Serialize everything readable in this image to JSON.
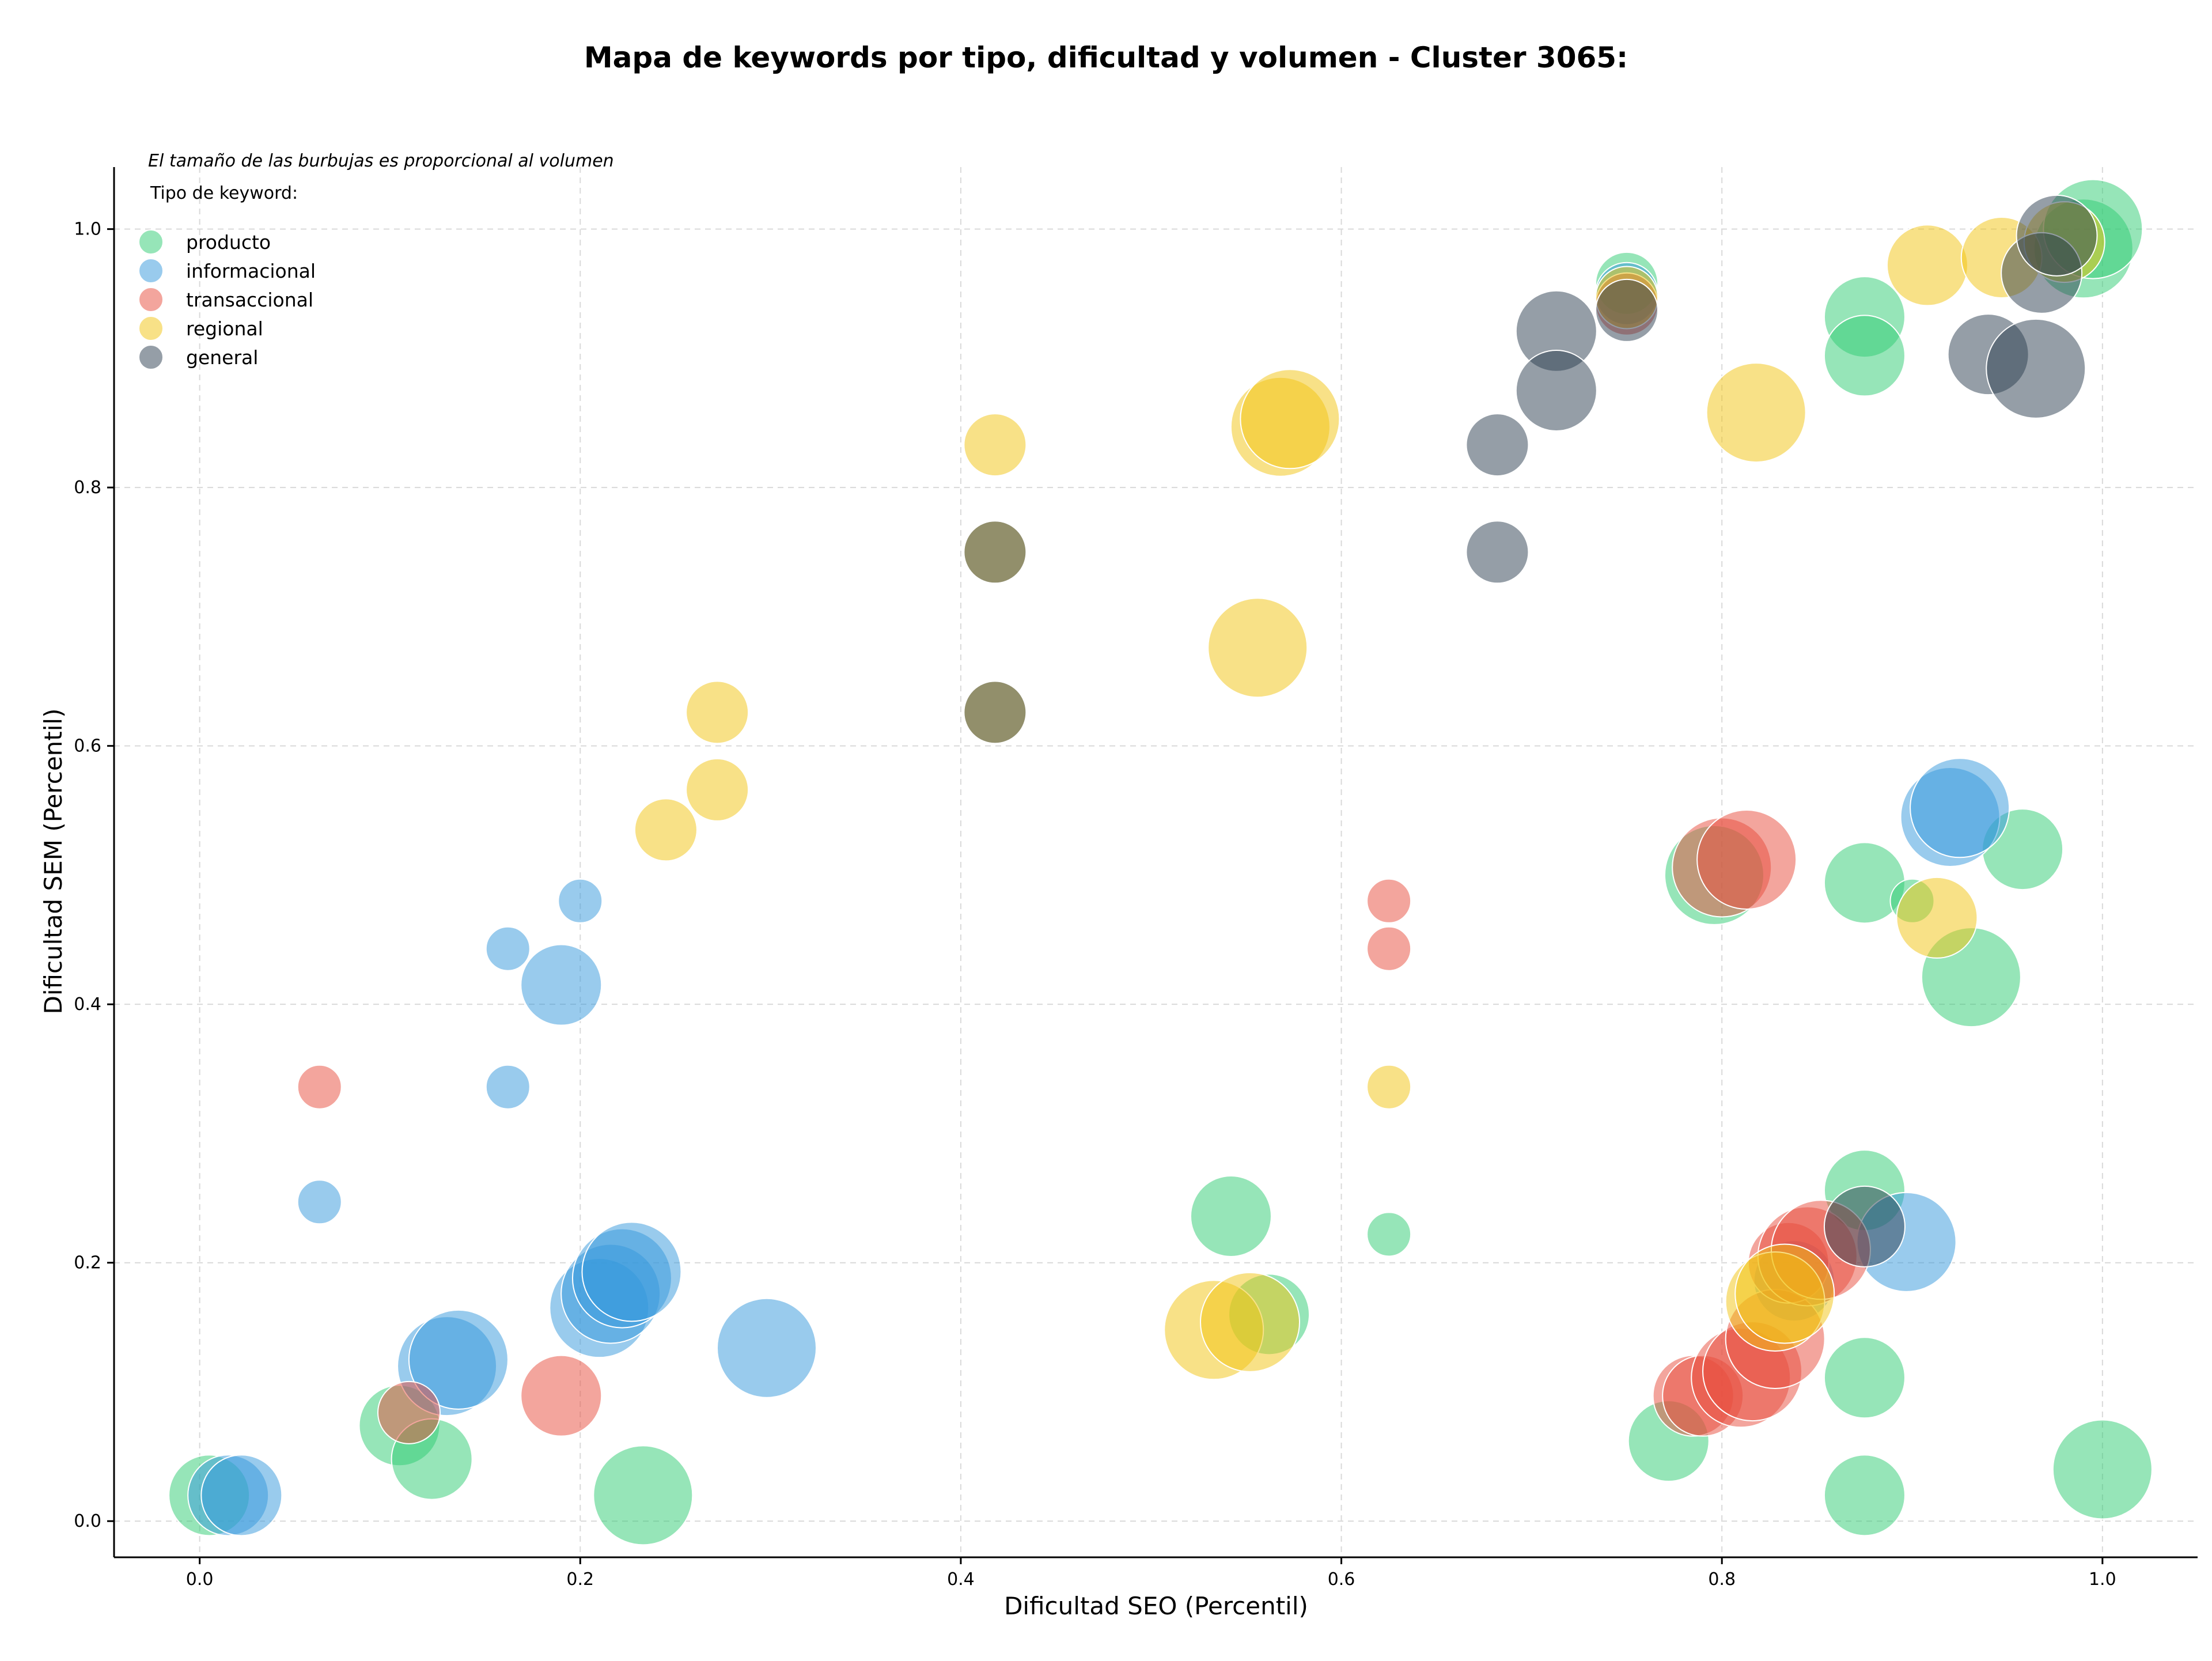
{
  "chart_data": {
    "type": "scatter",
    "title": "Mapa de keywords por tipo, dificultad y volumen - Cluster 3065:",
    "xlabel": "Dificultad SEO (Percentil)",
    "ylabel": "Dificultad SEM (Percentil)",
    "note": "El tamaño de las burbujas es proporcional al volumen",
    "legend_title": "Tipo de keyword:",
    "legend_position": "top-left",
    "xlim": [
      -0.045,
      1.05
    ],
    "ylim": [
      -0.028,
      1.048
    ],
    "xticks": [
      0.0,
      0.2,
      0.4,
      0.6,
      0.8,
      1.0
    ],
    "xtick_labels": [
      "0.0",
      "0.2",
      "0.4",
      "0.6",
      "0.8",
      "1.0"
    ],
    "yticks": [
      0.0,
      0.2,
      0.4,
      0.6,
      0.8,
      1.0
    ],
    "ytick_labels": [
      "0.0",
      "0.2",
      "0.4",
      "0.6",
      "0.8",
      "1.0"
    ],
    "grid": true,
    "series": [
      {
        "name": "producto",
        "color": "#2ecc71",
        "points": [
          {
            "x": 0.005,
            "y": 0.02,
            "v": 3
          },
          {
            "x": 0.105,
            "y": 0.074,
            "v": 3
          },
          {
            "x": 0.122,
            "y": 0.048,
            "v": 3
          },
          {
            "x": 0.233,
            "y": 0.02,
            "v": 4
          },
          {
            "x": 0.542,
            "y": 0.236,
            "v": 3
          },
          {
            "x": 0.562,
            "y": 0.16,
            "v": 3
          },
          {
            "x": 0.625,
            "y": 0.222,
            "v": 1
          },
          {
            "x": 0.75,
            "y": 0.958,
            "v": 2
          },
          {
            "x": 0.772,
            "y": 0.062,
            "v": 3
          },
          {
            "x": 0.796,
            "y": 0.5,
            "v": 4
          },
          {
            "x": 0.875,
            "y": 0.932,
            "v": 3
          },
          {
            "x": 0.875,
            "y": 0.902,
            "v": 3
          },
          {
            "x": 0.875,
            "y": 0.494,
            "v": 3
          },
          {
            "x": 0.875,
            "y": 0.256,
            "v": 3
          },
          {
            "x": 0.875,
            "y": 0.111,
            "v": 3
          },
          {
            "x": 0.875,
            "y": 0.02,
            "v": 3
          },
          {
            "x": 0.9,
            "y": 0.48,
            "v": 1
          },
          {
            "x": 0.931,
            "y": 0.421,
            "v": 4
          },
          {
            "x": 0.958,
            "y": 0.52,
            "v": 3
          },
          {
            "x": 0.99,
            "y": 0.985,
            "v": 4
          },
          {
            "x": 0.995,
            "y": 1.0,
            "v": 4
          },
          {
            "x": 1.0,
            "y": 0.04,
            "v": 4
          }
        ]
      },
      {
        "name": "informacional",
        "color": "#3498db",
        "points": [
          {
            "x": 0.015,
            "y": 0.02,
            "v": 3
          },
          {
            "x": 0.022,
            "y": 0.02,
            "v": 3
          },
          {
            "x": 0.063,
            "y": 0.247,
            "v": 1
          },
          {
            "x": 0.13,
            "y": 0.12,
            "v": 4
          },
          {
            "x": 0.136,
            "y": 0.125,
            "v": 4
          },
          {
            "x": 0.162,
            "y": 0.443,
            "v": 1
          },
          {
            "x": 0.162,
            "y": 0.336,
            "v": 1
          },
          {
            "x": 0.19,
            "y": 0.415,
            "v": 3
          },
          {
            "x": 0.2,
            "y": 0.48,
            "v": 1
          },
          {
            "x": 0.21,
            "y": 0.165,
            "v": 4
          },
          {
            "x": 0.216,
            "y": 0.176,
            "v": 4
          },
          {
            "x": 0.222,
            "y": 0.188,
            "v": 4
          },
          {
            "x": 0.227,
            "y": 0.193,
            "v": 4
          },
          {
            "x": 0.298,
            "y": 0.134,
            "v": 4
          },
          {
            "x": 0.75,
            "y": 0.95,
            "v": 2
          },
          {
            "x": 0.838,
            "y": 0.186,
            "v": 3
          },
          {
            "x": 0.897,
            "y": 0.216,
            "v": 4
          },
          {
            "x": 0.92,
            "y": 0.545,
            "v": 4
          },
          {
            "x": 0.925,
            "y": 0.552,
            "v": 4
          }
        ]
      },
      {
        "name": "transaccional",
        "color": "#e74c3c",
        "points": [
          {
            "x": 0.063,
            "y": 0.336,
            "v": 1
          },
          {
            "x": 0.11,
            "y": 0.084,
            "v": 2
          },
          {
            "x": 0.19,
            "y": 0.097,
            "v": 3
          },
          {
            "x": 0.625,
            "y": 0.48,
            "v": 1
          },
          {
            "x": 0.625,
            "y": 0.443,
            "v": 1
          },
          {
            "x": 0.75,
            "y": 0.942,
            "v": 2
          },
          {
            "x": 0.785,
            "y": 0.097,
            "v": 3
          },
          {
            "x": 0.79,
            "y": 0.097,
            "v": 3
          },
          {
            "x": 0.8,
            "y": 0.506,
            "v": 4
          },
          {
            "x": 0.813,
            "y": 0.512,
            "v": 4
          },
          {
            "x": 0.81,
            "y": 0.111,
            "v": 4
          },
          {
            "x": 0.816,
            "y": 0.116,
            "v": 4
          },
          {
            "x": 0.828,
            "y": 0.141,
            "v": 4
          },
          {
            "x": 0.835,
            "y": 0.2,
            "v": 3
          },
          {
            "x": 0.845,
            "y": 0.205,
            "v": 4
          },
          {
            "x": 0.852,
            "y": 0.21,
            "v": 4
          }
        ]
      },
      {
        "name": "regional",
        "color": "#f1c40f",
        "points": [
          {
            "x": 0.245,
            "y": 0.535,
            "v": 2
          },
          {
            "x": 0.272,
            "y": 0.626,
            "v": 2
          },
          {
            "x": 0.272,
            "y": 0.566,
            "v": 2
          },
          {
            "x": 0.418,
            "y": 0.833,
            "v": 2
          },
          {
            "x": 0.418,
            "y": 0.75,
            "v": 2
          },
          {
            "x": 0.418,
            "y": 0.626,
            "v": 2
          },
          {
            "x": 0.533,
            "y": 0.148,
            "v": 4
          },
          {
            "x": 0.552,
            "y": 0.154,
            "v": 4
          },
          {
            "x": 0.556,
            "y": 0.676,
            "v": 4
          },
          {
            "x": 0.568,
            "y": 0.847,
            "v": 4
          },
          {
            "x": 0.573,
            "y": 0.853,
            "v": 4
          },
          {
            "x": 0.625,
            "y": 0.336,
            "v": 1
          },
          {
            "x": 0.75,
            "y": 0.947,
            "v": 2
          },
          {
            "x": 0.818,
            "y": 0.858,
            "v": 4
          },
          {
            "x": 0.828,
            "y": 0.17,
            "v": 4
          },
          {
            "x": 0.833,
            "y": 0.176,
            "v": 4
          },
          {
            "x": 0.908,
            "y": 0.972,
            "v": 3
          },
          {
            "x": 0.913,
            "y": 0.467,
            "v": 3
          },
          {
            "x": 0.947,
            "y": 0.978,
            "v": 3
          },
          {
            "x": 0.98,
            "y": 0.99,
            "v": 3
          }
        ]
      },
      {
        "name": "general",
        "color": "#2c3e50",
        "points": [
          {
            "x": 0.418,
            "y": 0.75,
            "v": 2
          },
          {
            "x": 0.418,
            "y": 0.626,
            "v": 2
          },
          {
            "x": 0.682,
            "y": 0.833,
            "v": 2
          },
          {
            "x": 0.682,
            "y": 0.75,
            "v": 2
          },
          {
            "x": 0.713,
            "y": 0.921,
            "v": 3
          },
          {
            "x": 0.713,
            "y": 0.875,
            "v": 3
          },
          {
            "x": 0.75,
            "y": 0.937,
            "v": 2
          },
          {
            "x": 0.875,
            "y": 0.228,
            "v": 3
          },
          {
            "x": 0.94,
            "y": 0.903,
            "v": 3
          },
          {
            "x": 0.965,
            "y": 0.892,
            "v": 4
          },
          {
            "x": 0.968,
            "y": 0.966,
            "v": 3
          },
          {
            "x": 0.976,
            "y": 0.995,
            "v": 3
          }
        ]
      }
    ]
  }
}
